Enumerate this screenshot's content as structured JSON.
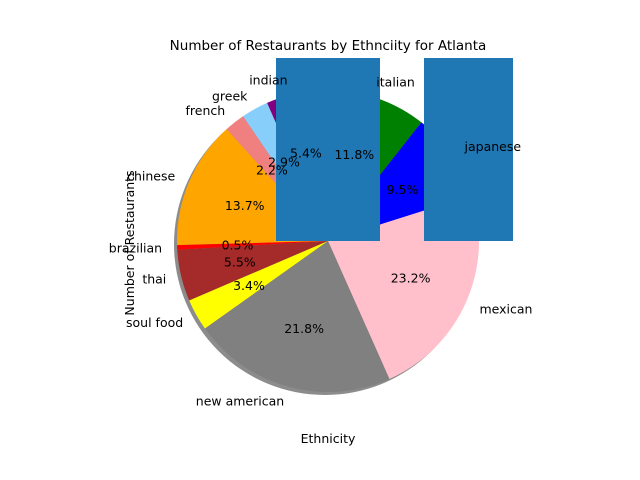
{
  "chart_data": {
    "type": "pie",
    "title": "Number of Restaurants by Ethnciity for Atlanta",
    "xlabel": "Ethnicity",
    "ylabel": "Number of Restaurants",
    "shadow": true,
    "slices": [
      {
        "label": "mexican",
        "percent": 23.2,
        "percent_label": "23.2%",
        "color": "#ffc0cb"
      },
      {
        "label": "japanese",
        "percent": 9.5,
        "percent_label": "9.5%",
        "color": "#0000ff"
      },
      {
        "label": "italian",
        "percent": 11.8,
        "percent_label": "11.8%",
        "color": "#008000"
      },
      {
        "label": "indian",
        "percent": 5.4,
        "percent_label": "5.4%",
        "color": "#800080"
      },
      {
        "label": "greek",
        "percent": 2.9,
        "percent_label": "2.9%",
        "color": "#87cefa"
      },
      {
        "label": "french",
        "percent": 2.2,
        "percent_label": "2.2%",
        "color": "#f08080"
      },
      {
        "label": "chinese",
        "percent": 13.7,
        "percent_label": "13.7%",
        "color": "#ffa500"
      },
      {
        "label": "brazilian",
        "percent": 0.5,
        "percent_label": "0.5%",
        "color": "#ff0000"
      },
      {
        "label": "thai",
        "percent": 5.5,
        "percent_label": "5.5%",
        "color": "#a52a2a"
      },
      {
        "label": "soul food",
        "percent": 3.4,
        "percent_label": "3.4%",
        "color": "#ffff00"
      },
      {
        "label": "new american",
        "percent": 21.8,
        "percent_label": "21.8%",
        "color": "#808080"
      }
    ],
    "overlay_bars": {
      "color": "#1f77b4",
      "count": 2
    }
  }
}
